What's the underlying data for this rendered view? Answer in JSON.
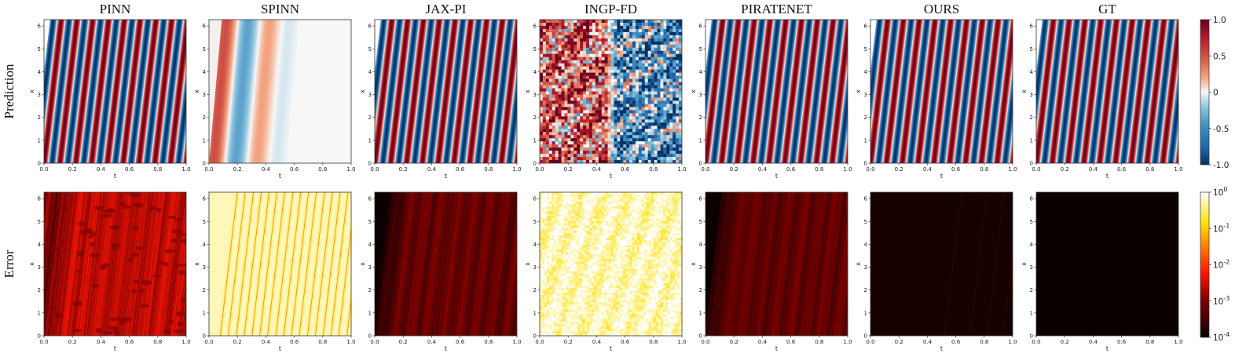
{
  "figure": {
    "columns": [
      "PINN",
      "SPINN",
      "JAX-PI",
      "INGP-FD",
      "PIRATENET",
      "OURS",
      "GT"
    ],
    "rows": [
      "Prediction",
      "Error"
    ]
  },
  "chart_data": [
    {
      "type": "heatmap",
      "row": "Prediction",
      "xlabel": "t",
      "ylabel": "x",
      "xlim": [
        0,
        1
      ],
      "ylim": [
        0,
        6.28
      ],
      "xticks": [
        "0.0",
        "0.2",
        "0.4",
        "0.6",
        "0.8",
        "1.0"
      ],
      "yticks": [
        "0",
        "1",
        "2",
        "3",
        "4",
        "5",
        "6"
      ],
      "colormap": "RdBu_r",
      "colorbar": {
        "scale": "linear",
        "min": -1.0,
        "max": 1.0,
        "ticks": [
          "1.0",
          "0.5",
          "0",
          "-0.5",
          "-1.0"
        ]
      },
      "panels": [
        {
          "method": "PINN",
          "pattern": "diagonal stripes, |u| ≈ 1"
        },
        {
          "method": "SPINN",
          "pattern": "weak stripes for t < 0.5, ≈ 0 after"
        },
        {
          "method": "JAX-PI",
          "pattern": "diagonal stripes, |u| ≈ 1"
        },
        {
          "method": "INGP-FD",
          "pattern": "noisy, positive t < 0.5, negative t > 0.5"
        },
        {
          "method": "PIRATENET",
          "pattern": "diagonal stripes, |u| ≈ 1"
        },
        {
          "method": "OURS",
          "pattern": "diagonal stripes, |u| ≈ 1"
        },
        {
          "method": "GT",
          "pattern": "diagonal stripes, |u| ≈ 1"
        }
      ]
    },
    {
      "type": "heatmap",
      "row": "Error",
      "xlabel": "t",
      "ylabel": "x",
      "xlim": [
        0,
        1
      ],
      "ylim": [
        0,
        6.28
      ],
      "xticks": [
        "0.0",
        "0.2",
        "0.4",
        "0.6",
        "0.8",
        "1.0"
      ],
      "yticks": [
        "0",
        "1",
        "2",
        "3",
        "4",
        "5",
        "6"
      ],
      "colormap": "hot",
      "colorbar": {
        "scale": "log",
        "min": 0.0001,
        "max": 1,
        "ticks": [
          "10^0",
          "10^-1",
          "10^-2",
          "10^-3",
          "10^-4"
        ]
      },
      "panels": [
        {
          "method": "PINN",
          "approx_log10_error": -2.6
        },
        {
          "method": "SPINN",
          "approx_log10_error": -0.5
        },
        {
          "method": "JAX-PI",
          "approx_log10_error": -3.2
        },
        {
          "method": "INGP-FD",
          "approx_log10_error": -0.2
        },
        {
          "method": "PIRATENET",
          "approx_log10_error": -3.2
        },
        {
          "method": "OURS",
          "approx_log10_error": -3.9
        },
        {
          "method": "GT",
          "approx_log10_error": -4.0
        }
      ]
    }
  ]
}
